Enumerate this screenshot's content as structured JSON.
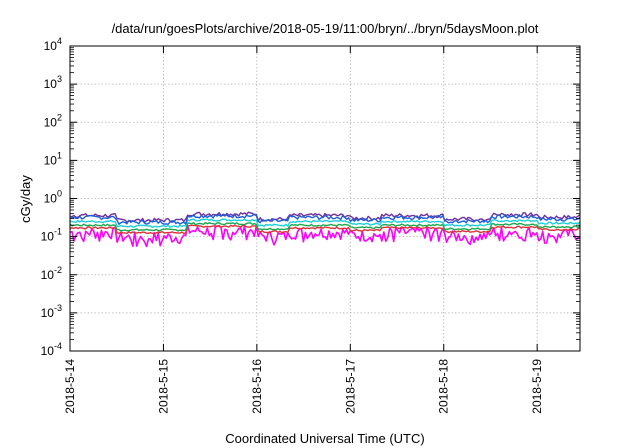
{
  "chart_data": {
    "type": "line",
    "title": "/data/run/goesPlots/archive/2018-05-19/11:00/bryn/../bryn/5daysMoon.plot",
    "xlabel": "Coordinated Universal Time (UTC)",
    "ylabel": "cGy/day",
    "yscale": "log",
    "ylim": [
      0.0001,
      10000
    ],
    "xlim": [
      "2018-05-14T00:00",
      "2018-05-19T11:00"
    ],
    "x_tick_labels": [
      "2018-5-14",
      "2018-5-15",
      "2018-5-16",
      "2018-5-17",
      "2018-5-18",
      "2018-5-19"
    ],
    "y_tick_labels": [
      {
        "base": "10",
        "exp": "-4"
      },
      {
        "base": "10",
        "exp": "-3"
      },
      {
        "base": "10",
        "exp": "-2"
      },
      {
        "base": "10",
        "exp": "-1"
      },
      {
        "base": "10",
        "exp": "0"
      },
      {
        "base": "10",
        "exp": "1"
      },
      {
        "base": "10",
        "exp": "2"
      },
      {
        "base": "10",
        "exp": "3"
      },
      {
        "base": "10",
        "exp": "4"
      }
    ],
    "grid": true,
    "series": [
      {
        "color": "#ff00ff",
        "base_level": 0.13,
        "variation": "high, dips to ~0.03"
      },
      {
        "color": "#e0303a",
        "base_level": 0.17,
        "variation": "low"
      },
      {
        "color": "#1aa84f",
        "base_level": 0.2,
        "variation": "low"
      },
      {
        "color": "#19cfd8",
        "base_level": 0.25,
        "variation": "low"
      },
      {
        "color": "#7030a0",
        "base_level": 0.36,
        "variation": "medium"
      },
      {
        "color": "#1e5fd8",
        "base_level": 0.32,
        "variation": "medium"
      }
    ],
    "series_pattern": [
      {
        "start": "2018-05-14T00:00",
        "end": "2018-05-14T12:00",
        "factor": 1.0
      },
      {
        "start": "2018-05-14T12:00",
        "end": "2018-05-15T06:00",
        "factor": 0.75
      },
      {
        "start": "2018-05-15T06:00",
        "end": "2018-05-16T00:00",
        "factor": 1.1
      },
      {
        "start": "2018-05-16T00:00",
        "end": "2018-05-16T08:00",
        "factor": 0.8
      },
      {
        "start": "2018-05-16T08:00",
        "end": "2018-05-17T00:00",
        "factor": 1.0
      },
      {
        "start": "2018-05-17T00:00",
        "end": "2018-05-17T08:00",
        "factor": 0.85
      },
      {
        "start": "2018-05-17T08:00",
        "end": "2018-05-18T00:00",
        "factor": 1.0
      },
      {
        "start": "2018-05-18T00:00",
        "end": "2018-05-18T12:00",
        "factor": 0.8
      },
      {
        "start": "2018-05-18T12:00",
        "end": "2018-05-19T00:00",
        "factor": 1.05
      },
      {
        "start": "2018-05-19T00:00",
        "end": "2018-05-19T11:00",
        "factor": 0.9
      }
    ]
  }
}
